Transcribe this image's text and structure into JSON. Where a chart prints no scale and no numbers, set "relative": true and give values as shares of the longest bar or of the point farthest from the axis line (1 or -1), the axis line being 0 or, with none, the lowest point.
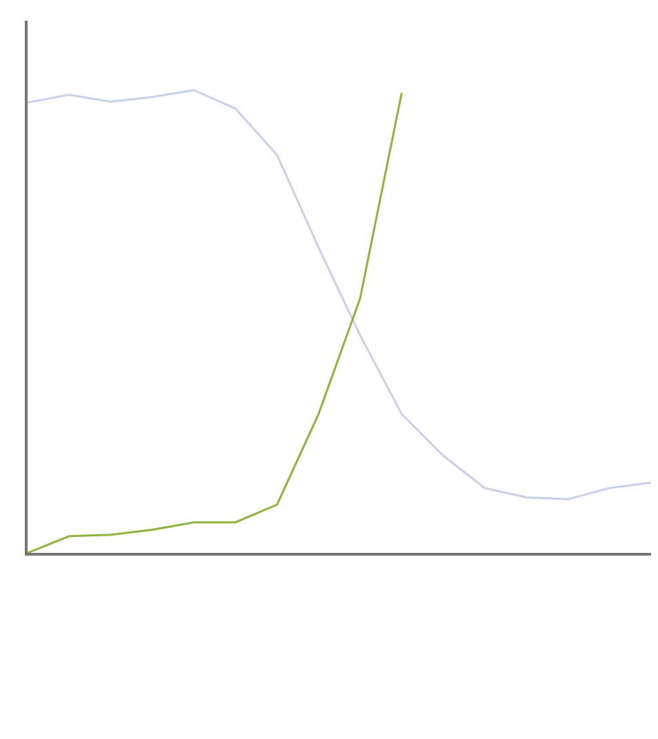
{
  "chart_data": {
    "type": "line",
    "relative": true,
    "categories": [
      null,
      null,
      null,
      null,
      null,
      null,
      null,
      null,
      null,
      null,
      null,
      null,
      null,
      null,
      null,
      null
    ],
    "series": [
      {
        "color": "#c9d0ea",
        "values": [
          0.973,
          0.99,
          0.975,
          0.985,
          1.0,
          0.96,
          0.86,
          0.66,
          0.47,
          0.3,
          0.21,
          0.14,
          0.12,
          0.116,
          0.14,
          0.152
        ]
      },
      {
        "color": "#8fb43c",
        "values": [
          0,
          0.036,
          0.039,
          0.05,
          0.066,
          0.066,
          0.104,
          0.3,
          0.55,
          0.994,
          null,
          null,
          null,
          null,
          null,
          null
        ]
      }
    ],
    "marker": "none",
    "line_style": "solid"
  }
}
